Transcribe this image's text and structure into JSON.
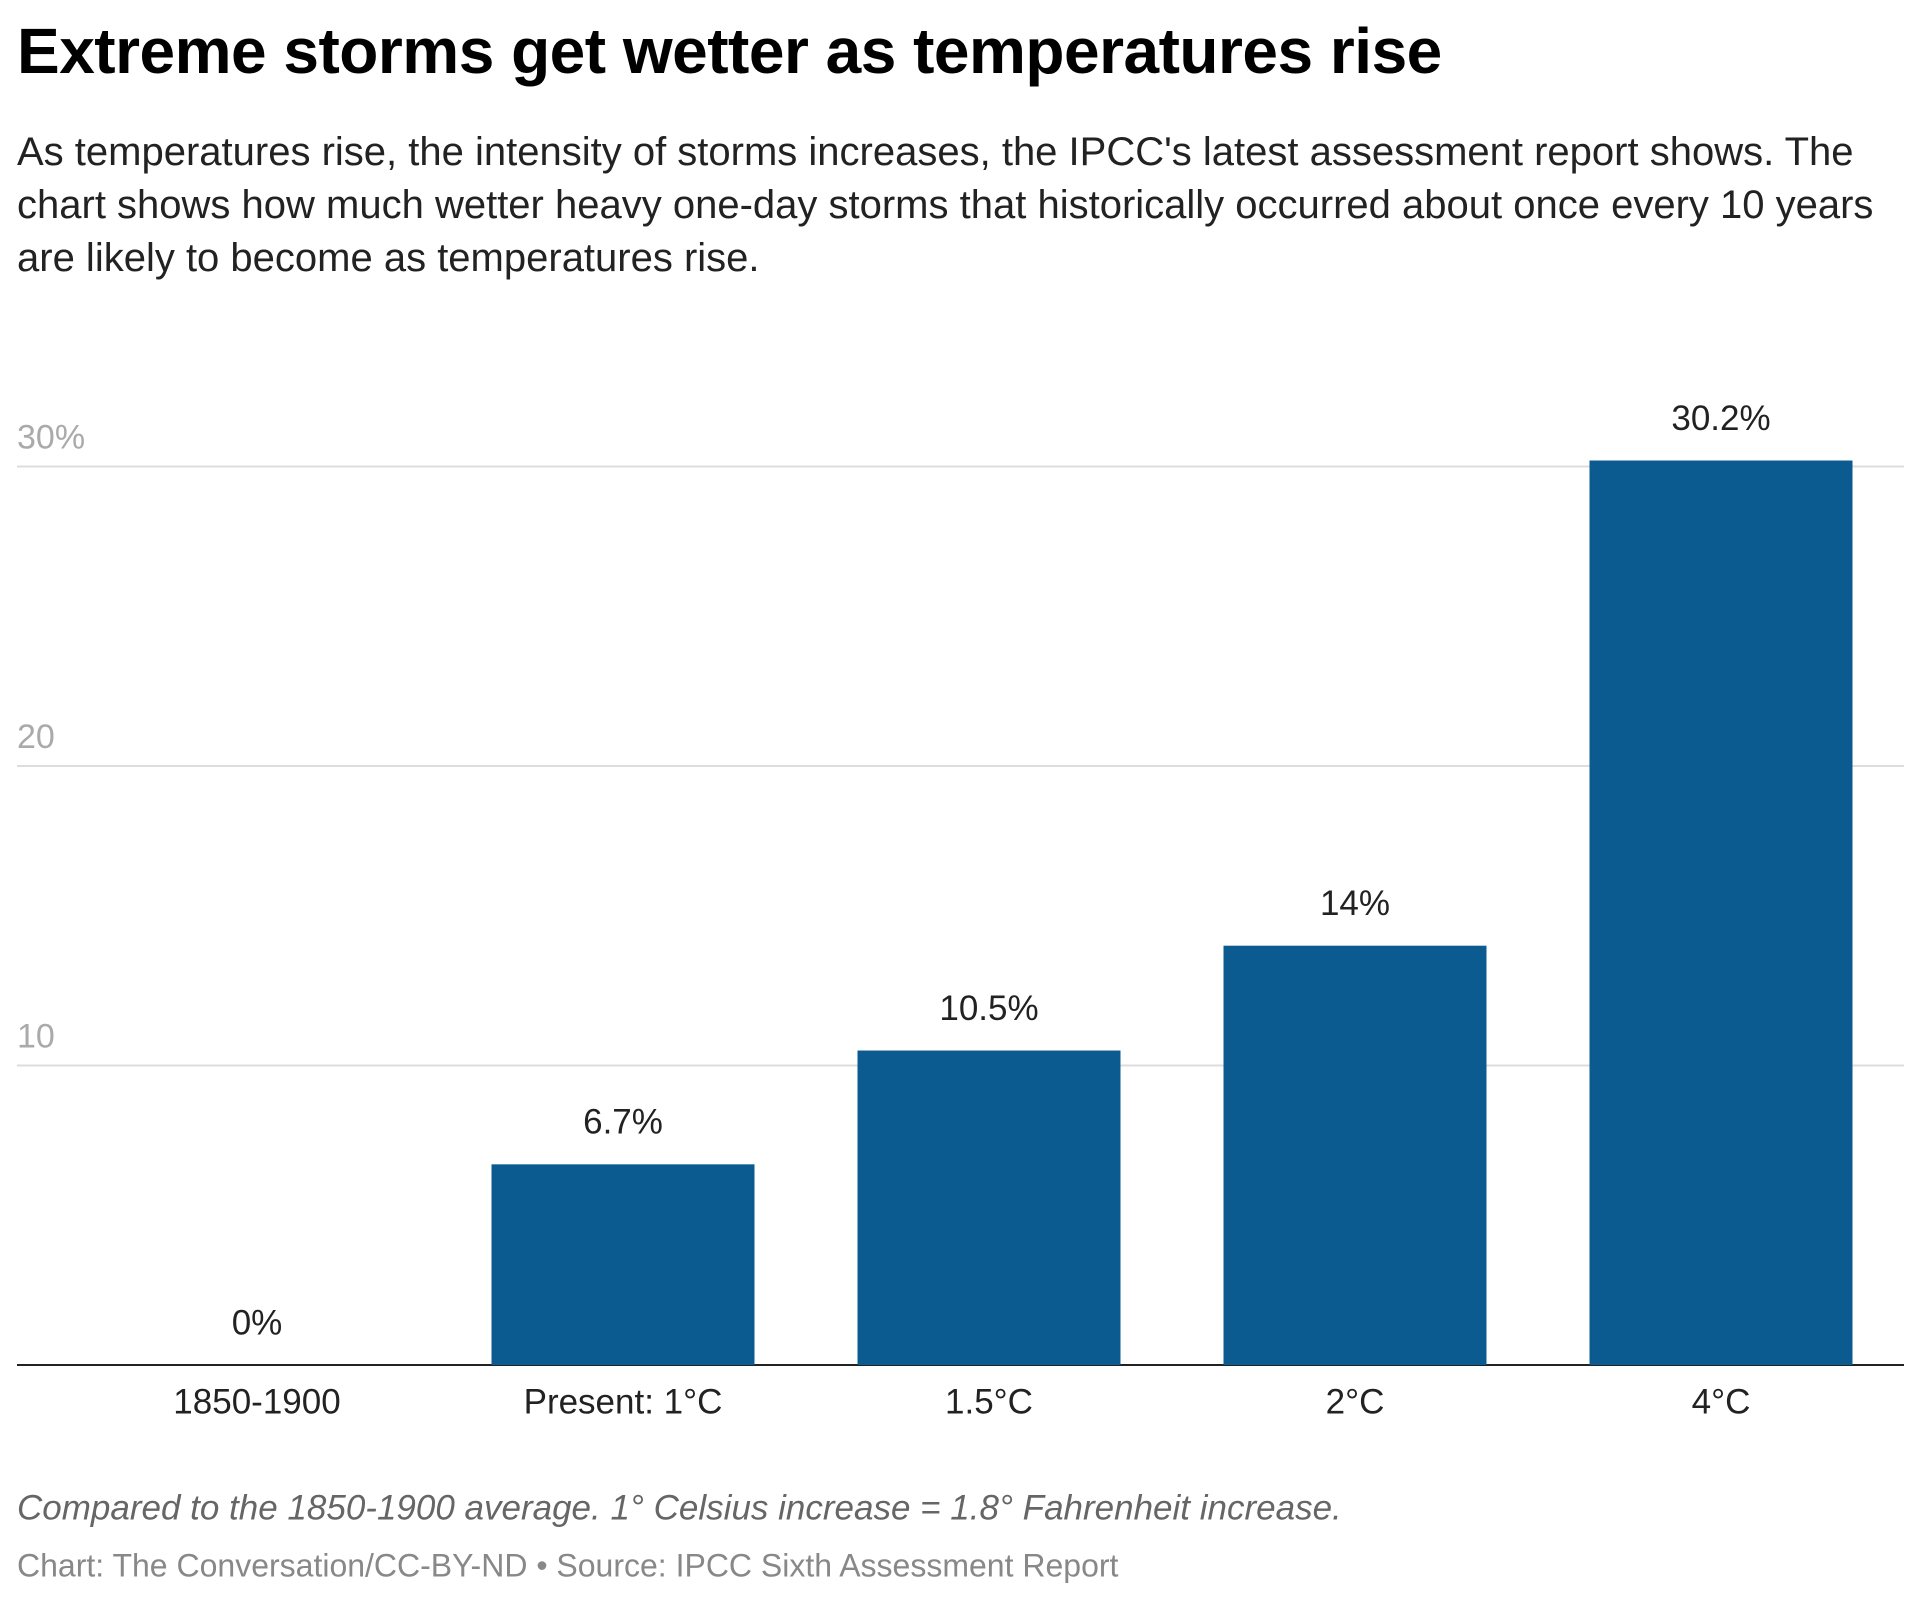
{
  "chart_data": {
    "type": "bar",
    "title": "Extreme storms get wetter as temperatures rise",
    "subtitle": "As temperatures rise, the intensity of storms increases, the IPCC's latest assessment report shows. The chart shows how much wetter heavy one-day storms that historically occurred about once every 10 years are likely to become as temperatures rise.",
    "categories": [
      "1850-1900",
      "Present: 1°C",
      "1.5°C",
      "2°C",
      "4°C"
    ],
    "values": [
      0,
      6.7,
      10.5,
      14,
      30.2
    ],
    "value_labels": [
      "0%",
      "6.7%",
      "10.5%",
      "14%",
      "30.2%"
    ],
    "color": "#0b5b91",
    "ylim": [
      0,
      30
    ],
    "yticks": [
      10,
      20,
      {
        "value": 30,
        "label": "30%"
      }
    ],
    "grid": true,
    "note": "Compared to the 1850-1900 average. 1° Celsius increase = 1.8° Fahrenheit increase.",
    "source": "Chart: The Conversation/CC-BY-ND • Source: IPCC Sixth Assessment Report"
  }
}
